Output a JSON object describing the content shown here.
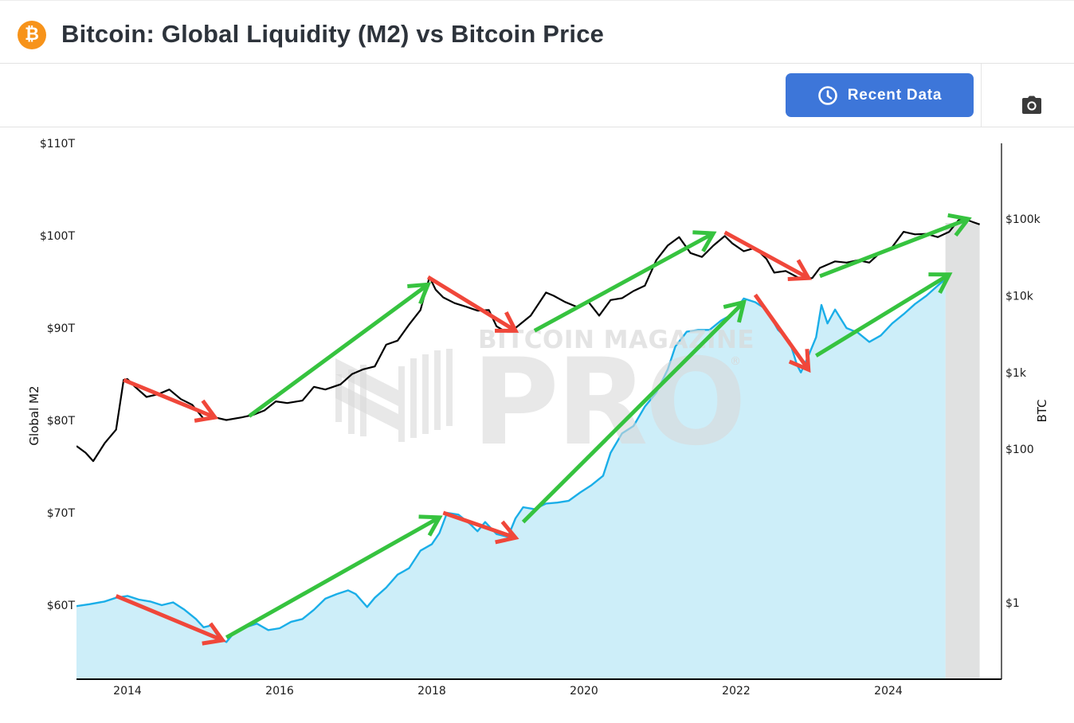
{
  "header": {
    "logo_icon": "bitcoin-icon",
    "logo_glyph": "₿",
    "title": "Bitcoin: Global Liquidity (M2) vs Bitcoin Price"
  },
  "toolbar": {
    "recent_data_label": "Recent Data",
    "recent_data_icon": "clock-icon",
    "screenshot_icon": "camera-icon",
    "accent_color": "#3d76d9"
  },
  "chart_data": {
    "type": "line",
    "title": "Bitcoin: Global Liquidity (M2) vs Bitcoin Price",
    "xlabel": "",
    "x_ticks": [
      "2014",
      "2016",
      "2018",
      "2020",
      "2022",
      "2024"
    ],
    "xlim": [
      2013.33,
      2025.2
    ],
    "y_left": {
      "label": "Global M2",
      "ticks": [
        "$60T",
        "$70T",
        "$80T",
        "$90T",
        "$100T",
        "$110T"
      ],
      "tick_values": [
        60,
        70,
        80,
        90,
        100,
        110
      ],
      "range": [
        52.4,
        110
      ],
      "unit": "trillion USD"
    },
    "y_right": {
      "label": "BTC",
      "scale": "log",
      "ticks": [
        "$1",
        "$100",
        "$1k",
        "$10k",
        "$100k"
      ],
      "tick_values": [
        1,
        100,
        1000,
        10000,
        100000
      ],
      "range": [
        0.1,
        5000000
      ]
    },
    "watermark": {
      "line1": "BITCOIN MAGAZINE",
      "line2": "PRO",
      "mark": "®"
    },
    "shaded_region": {
      "from": 2024.75,
      "to": 2025.2,
      "color": "#e0e1e1"
    },
    "series": [
      {
        "name": "Global M2",
        "axis": "left",
        "style": "area",
        "color": "#1aaee8",
        "fill": "#cdeef9",
        "points": [
          [
            2013.33,
            59.9
          ],
          [
            2013.5,
            60.1
          ],
          [
            2013.7,
            60.4
          ],
          [
            2013.85,
            60.8
          ],
          [
            2014.0,
            61.0
          ],
          [
            2014.15,
            60.6
          ],
          [
            2014.3,
            60.4
          ],
          [
            2014.45,
            60.0
          ],
          [
            2014.6,
            60.3
          ],
          [
            2014.75,
            59.5
          ],
          [
            2014.9,
            58.5
          ],
          [
            2015.0,
            57.6
          ],
          [
            2015.1,
            57.8
          ],
          [
            2015.2,
            56.5
          ],
          [
            2015.3,
            56.0
          ],
          [
            2015.4,
            57.0
          ],
          [
            2015.55,
            57.6
          ],
          [
            2015.7,
            58.0
          ],
          [
            2015.85,
            57.3
          ],
          [
            2016.0,
            57.5
          ],
          [
            2016.15,
            58.2
          ],
          [
            2016.3,
            58.5
          ],
          [
            2016.45,
            59.5
          ],
          [
            2016.6,
            60.7
          ],
          [
            2016.75,
            61.2
          ],
          [
            2016.9,
            61.6
          ],
          [
            2017.0,
            61.2
          ],
          [
            2017.15,
            59.8
          ],
          [
            2017.25,
            60.8
          ],
          [
            2017.4,
            61.9
          ],
          [
            2017.55,
            63.3
          ],
          [
            2017.7,
            64.0
          ],
          [
            2017.85,
            65.9
          ],
          [
            2018.0,
            66.6
          ],
          [
            2018.1,
            67.8
          ],
          [
            2018.2,
            70.0
          ],
          [
            2018.35,
            69.8
          ],
          [
            2018.5,
            68.8
          ],
          [
            2018.6,
            68.0
          ],
          [
            2018.7,
            69.0
          ],
          [
            2018.85,
            67.7
          ],
          [
            2019.0,
            67.4
          ],
          [
            2019.1,
            69.4
          ],
          [
            2019.2,
            70.6
          ],
          [
            2019.35,
            70.4
          ],
          [
            2019.5,
            71.0
          ],
          [
            2019.65,
            71.1
          ],
          [
            2019.8,
            71.3
          ],
          [
            2019.95,
            72.2
          ],
          [
            2020.1,
            73.0
          ],
          [
            2020.25,
            74.0
          ],
          [
            2020.35,
            76.5
          ],
          [
            2020.5,
            78.6
          ],
          [
            2020.65,
            79.4
          ],
          [
            2020.8,
            81.5
          ],
          [
            2020.95,
            83.0
          ],
          [
            2021.1,
            85.5
          ],
          [
            2021.2,
            88.0
          ],
          [
            2021.35,
            89.6
          ],
          [
            2021.5,
            89.8
          ],
          [
            2021.65,
            89.8
          ],
          [
            2021.8,
            90.8
          ],
          [
            2021.95,
            91.5
          ],
          [
            2022.1,
            93.2
          ],
          [
            2022.25,
            92.8
          ],
          [
            2022.4,
            92.0
          ],
          [
            2022.55,
            89.8
          ],
          [
            2022.7,
            88.6
          ],
          [
            2022.8,
            86.0
          ],
          [
            2022.85,
            85.2
          ],
          [
            2022.95,
            87.0
          ],
          [
            2023.05,
            89.0
          ],
          [
            2023.12,
            92.5
          ],
          [
            2023.2,
            90.5
          ],
          [
            2023.3,
            92.0
          ],
          [
            2023.45,
            90.0
          ],
          [
            2023.6,
            89.5
          ],
          [
            2023.75,
            88.5
          ],
          [
            2023.9,
            89.2
          ],
          [
            2024.05,
            90.5
          ],
          [
            2024.2,
            91.5
          ],
          [
            2024.35,
            92.6
          ],
          [
            2024.5,
            93.5
          ],
          [
            2024.65,
            94.6
          ],
          [
            2024.75,
            95.3
          ]
        ]
      },
      {
        "name": "Bitcoin Price",
        "axis": "right",
        "style": "line",
        "color": "#000000",
        "points": [
          [
            2013.33,
            110
          ],
          [
            2013.45,
            90
          ],
          [
            2013.55,
            70
          ],
          [
            2013.7,
            120
          ],
          [
            2013.85,
            180
          ],
          [
            2013.95,
            800
          ],
          [
            2014.0,
            820
          ],
          [
            2014.1,
            650
          ],
          [
            2014.25,
            480
          ],
          [
            2014.4,
            520
          ],
          [
            2014.55,
            600
          ],
          [
            2014.7,
            450
          ],
          [
            2014.85,
            380
          ],
          [
            2015.0,
            250
          ],
          [
            2015.15,
            260
          ],
          [
            2015.3,
            240
          ],
          [
            2015.5,
            260
          ],
          [
            2015.65,
            280
          ],
          [
            2015.8,
            320
          ],
          [
            2015.95,
            420
          ],
          [
            2016.1,
            400
          ],
          [
            2016.3,
            430
          ],
          [
            2016.45,
            650
          ],
          [
            2016.6,
            600
          ],
          [
            2016.8,
            700
          ],
          [
            2016.95,
            950
          ],
          [
            2017.1,
            1100
          ],
          [
            2017.25,
            1200
          ],
          [
            2017.4,
            2300
          ],
          [
            2017.55,
            2600
          ],
          [
            2017.7,
            4200
          ],
          [
            2017.85,
            6500
          ],
          [
            2017.97,
            17500
          ],
          [
            2018.05,
            12000
          ],
          [
            2018.15,
            9500
          ],
          [
            2018.3,
            8000
          ],
          [
            2018.45,
            7200
          ],
          [
            2018.6,
            6400
          ],
          [
            2018.75,
            6500
          ],
          [
            2018.85,
            4000
          ],
          [
            2018.95,
            3500
          ],
          [
            2019.1,
            3800
          ],
          [
            2019.3,
            5500
          ],
          [
            2019.5,
            11000
          ],
          [
            2019.6,
            10000
          ],
          [
            2019.75,
            8300
          ],
          [
            2019.9,
            7200
          ],
          [
            2020.05,
            8500
          ],
          [
            2020.2,
            5500
          ],
          [
            2020.35,
            8800
          ],
          [
            2020.5,
            9300
          ],
          [
            2020.65,
            11500
          ],
          [
            2020.8,
            13500
          ],
          [
            2020.95,
            29000
          ],
          [
            2021.1,
            45000
          ],
          [
            2021.25,
            58000
          ],
          [
            2021.4,
            36000
          ],
          [
            2021.55,
            32000
          ],
          [
            2021.7,
            45000
          ],
          [
            2021.85,
            60000
          ],
          [
            2021.95,
            48000
          ],
          [
            2022.1,
            38000
          ],
          [
            2022.25,
            42000
          ],
          [
            2022.4,
            30000
          ],
          [
            2022.5,
            20000
          ],
          [
            2022.65,
            21000
          ],
          [
            2022.85,
            16500
          ],
          [
            2023.0,
            17000
          ],
          [
            2023.1,
            23000
          ],
          [
            2023.3,
            28000
          ],
          [
            2023.45,
            27000
          ],
          [
            2023.6,
            29000
          ],
          [
            2023.75,
            27000
          ],
          [
            2023.9,
            37000
          ],
          [
            2024.05,
            43000
          ],
          [
            2024.2,
            68000
          ],
          [
            2024.35,
            63000
          ],
          [
            2024.5,
            64000
          ],
          [
            2024.65,
            58000
          ],
          [
            2024.8,
            68000
          ],
          [
            2024.92,
            96000
          ],
          [
            2025.0,
            100000
          ],
          [
            2025.1,
            92000
          ],
          [
            2025.2,
            85000
          ]
        ]
      }
    ],
    "annotations": [
      {
        "type": "arrow",
        "color": "red",
        "hex": "#f0473a",
        "target": "btc",
        "from": [
          2013.95,
          800
        ],
        "to": [
          2015.15,
          260
        ]
      },
      {
        "type": "arrow",
        "color": "green",
        "hex": "#36c33f",
        "target": "btc",
        "from": [
          2015.6,
          270
        ],
        "to": [
          2017.95,
          14000
        ]
      },
      {
        "type": "arrow",
        "color": "red",
        "hex": "#f0473a",
        "target": "btc",
        "from": [
          2017.95,
          17500
        ],
        "to": [
          2019.1,
          3500
        ]
      },
      {
        "type": "arrow",
        "color": "green",
        "hex": "#36c33f",
        "target": "btc",
        "from": [
          2019.35,
          3500
        ],
        "to": [
          2021.7,
          65000
        ]
      },
      {
        "type": "arrow",
        "color": "red",
        "hex": "#f0473a",
        "target": "btc",
        "from": [
          2021.85,
          67000
        ],
        "to": [
          2022.95,
          17000
        ]
      },
      {
        "type": "arrow",
        "color": "green",
        "hex": "#36c33f",
        "target": "btc",
        "from": [
          2023.1,
          18000
        ],
        "to": [
          2025.05,
          100000
        ]
      },
      {
        "type": "arrow",
        "color": "red",
        "hex": "#f0473a",
        "target": "m2",
        "from": [
          2013.85,
          61.0
        ],
        "to": [
          2015.25,
          56.2
        ]
      },
      {
        "type": "arrow",
        "color": "green",
        "hex": "#36c33f",
        "target": "m2",
        "from": [
          2015.3,
          56.5
        ],
        "to": [
          2018.1,
          69.5
        ]
      },
      {
        "type": "arrow",
        "color": "red",
        "hex": "#f0473a",
        "target": "m2",
        "from": [
          2018.15,
          70.0
        ],
        "to": [
          2019.1,
          67.3
        ]
      },
      {
        "type": "arrow",
        "color": "green",
        "hex": "#36c33f",
        "target": "m2",
        "from": [
          2019.2,
          69.0
        ],
        "to": [
          2022.1,
          92.8
        ]
      },
      {
        "type": "arrow",
        "color": "red",
        "hex": "#f0473a",
        "target": "m2",
        "from": [
          2022.25,
          93.6
        ],
        "to": [
          2022.95,
          85.5
        ]
      },
      {
        "type": "arrow",
        "color": "green",
        "hex": "#36c33f",
        "target": "m2",
        "from": [
          2023.05,
          87.0
        ],
        "to": [
          2024.8,
          95.8
        ]
      }
    ]
  }
}
